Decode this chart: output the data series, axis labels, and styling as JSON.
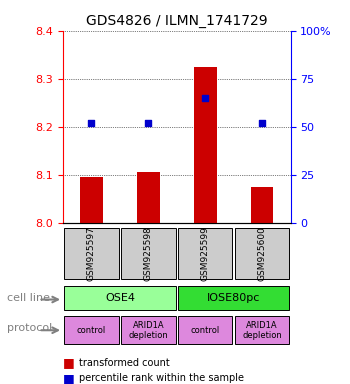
{
  "title": "GDS4826 / ILMN_1741729",
  "samples": [
    "GSM925597",
    "GSM925598",
    "GSM925599",
    "GSM925600"
  ],
  "bar_values": [
    8.095,
    8.105,
    8.325,
    8.075
  ],
  "dot_values": [
    52,
    52,
    65,
    52
  ],
  "ylim_left": [
    8.0,
    8.4
  ],
  "ylim_right": [
    0,
    100
  ],
  "yticks_left": [
    8.0,
    8.1,
    8.2,
    8.3,
    8.4
  ],
  "yticks_right": [
    0,
    25,
    50,
    75,
    100
  ],
  "ytick_labels_right": [
    "0",
    "25",
    "50",
    "75",
    "100%"
  ],
  "bar_color": "#cc0000",
  "dot_color": "#0000cc",
  "bar_bottom": 8.0,
  "cell_lines": [
    "OSE4",
    "OSE4",
    "IOSE80pc",
    "IOSE80pc"
  ],
  "cell_line_labels": [
    "OSE4",
    "IOSE80pc"
  ],
  "cell_line_colors": [
    "#99ff99",
    "#33dd33"
  ],
  "protocols": [
    "control",
    "ARID1A\ndepletion",
    "control",
    "ARID1A\ndepletion"
  ],
  "protocol_color": "#dd88dd",
  "sample_box_color": "#cccccc",
  "legend_bar_label": "transformed count",
  "legend_dot_label": "percentile rank within the sample",
  "cell_line_arrow_label": "cell line",
  "protocol_arrow_label": "protocol"
}
